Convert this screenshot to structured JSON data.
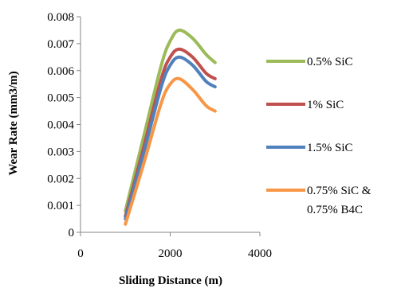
{
  "chart_data": {
    "type": "line",
    "xlabel": "Sliding Distance (m)",
    "ylabel": "Wear Rate (mm3/m)",
    "xlim": [
      0,
      4000
    ],
    "ylim": [
      0,
      0.008
    ],
    "x_ticks": [
      "0",
      "2000",
      "4000"
    ],
    "y_ticks": [
      "0",
      "0.001",
      "0.002",
      "0.003",
      "0.004",
      "0.005",
      "0.006",
      "0.007",
      "0.008"
    ],
    "grid": false,
    "legend_position": "right",
    "series": [
      {
        "name": "0.5% SiC",
        "color": "#9BBB59",
        "points": [
          [
            1000,
            0.0008
          ],
          [
            1400,
            0.0035
          ],
          [
            1800,
            0.0062
          ],
          [
            2000,
            0.0071
          ],
          [
            2200,
            0.0075
          ],
          [
            2500,
            0.0072
          ],
          [
            2800,
            0.0066
          ],
          [
            3000,
            0.0063
          ]
        ]
      },
      {
        "name": "1% SiC",
        "color": "#C0504D",
        "points": [
          [
            1000,
            0.0006
          ],
          [
            1400,
            0.0031
          ],
          [
            1800,
            0.0057
          ],
          [
            2000,
            0.0065
          ],
          [
            2200,
            0.0068
          ],
          [
            2500,
            0.0065
          ],
          [
            2800,
            0.0059
          ],
          [
            3000,
            0.0057
          ]
        ]
      },
      {
        "name": "1.5% SiC",
        "color": "#4F81BD",
        "points": [
          [
            1000,
            0.0005
          ],
          [
            1400,
            0.0029
          ],
          [
            1800,
            0.0054
          ],
          [
            2000,
            0.0062
          ],
          [
            2200,
            0.0065
          ],
          [
            2500,
            0.0062
          ],
          [
            2800,
            0.0056
          ],
          [
            3000,
            0.0054
          ]
        ]
      },
      {
        "name": "0.75% SiC & 0.75% B4C",
        "label_lines": [
          "0.75% SiC &",
          "0.75% B4C"
        ],
        "color": "#F79646",
        "points": [
          [
            1000,
            0.0003
          ],
          [
            1400,
            0.0025
          ],
          [
            1800,
            0.0048
          ],
          [
            2000,
            0.0055
          ],
          [
            2200,
            0.0057
          ],
          [
            2500,
            0.0053
          ],
          [
            2800,
            0.0047
          ],
          [
            3000,
            0.0045
          ]
        ]
      }
    ]
  }
}
